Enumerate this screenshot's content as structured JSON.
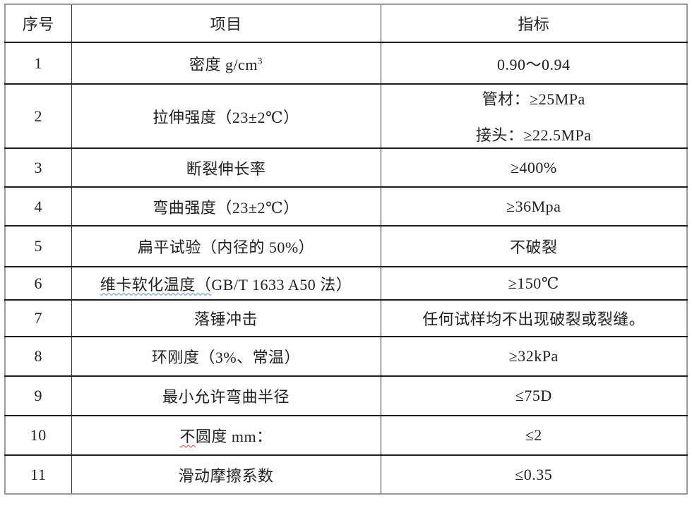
{
  "table": {
    "headers": {
      "col_no": "序号",
      "col_item": "项目",
      "col_spec": "指标"
    },
    "rows": [
      {
        "no": "1",
        "item": "密度 g/cm",
        "item_sup": "3",
        "specs": [
          "0.90～0.94"
        ]
      },
      {
        "no": "2",
        "item": "拉伸强度（23±2℃）",
        "specs": [
          "管材：≥25MPa",
          "接头：≥22.5MPa"
        ]
      },
      {
        "no": "3",
        "item": "断裂伸长率",
        "specs": [
          "≥400%"
        ]
      },
      {
        "no": "4",
        "item": "弯曲强度（23±2℃）",
        "specs": [
          "≥36Mpa"
        ]
      },
      {
        "no": "5",
        "item": "扁平试验（内径的 50%）",
        "specs": [
          "不破裂"
        ]
      },
      {
        "no": "6",
        "item_marked": "维卡软化温度（",
        "item_rest": "GB/T 1633 A50 法）",
        "specs": [
          "≥150℃"
        ]
      },
      {
        "no": "7",
        "item": "落锤冲击",
        "specs": [
          "任何试样均不出现破裂或裂缝。"
        ]
      },
      {
        "no": "8",
        "item": "环刚度（3%、常温）",
        "specs": [
          "≥32kPa"
        ]
      },
      {
        "no": "9",
        "item": "最小允许弯曲半径",
        "specs": [
          "≤75D"
        ]
      },
      {
        "no": "10",
        "item_marked": "不",
        "item_rest": "圆度 mm：",
        "specs": [
          "≤2"
        ]
      },
      {
        "no": "11",
        "item": "滑动摩擦系数",
        "specs": [
          "≤0.35"
        ]
      }
    ],
    "colors": {
      "inner_border": "#1c1c1c",
      "outer_border": "#9a9a9a",
      "spellcheck_blue": "#5b8bd0",
      "spellcheck_red": "#d04b4b"
    }
  }
}
